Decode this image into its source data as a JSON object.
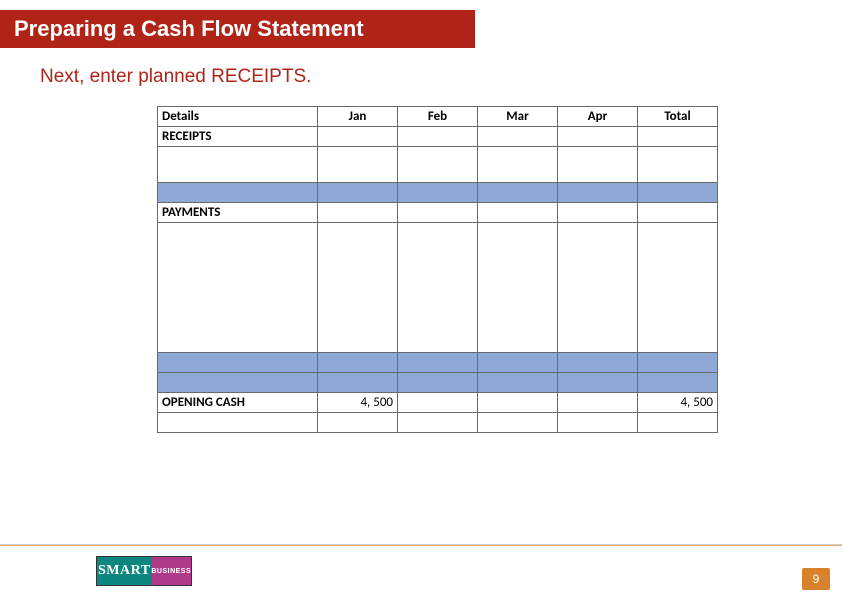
{
  "header": {
    "title": "Preparing a Cash Flow Statement"
  },
  "subtitle": "Next, enter planned RECEIPTS.",
  "table": {
    "columns": [
      "Details",
      "Jan",
      "Feb",
      "Mar",
      "Apr",
      "Total"
    ],
    "section_receipts": "RECEIPTS",
    "section_payments": "PAYMENTS",
    "opening_cash_label": "OPENING CASH",
    "opening_cash_jan": "4, 500",
    "opening_cash_total": "4, 500",
    "band_color": "#8ea9d6",
    "border_color": "#6a6a6a"
  },
  "logo": {
    "word1": "SMART",
    "word2": "BUSINESS"
  },
  "page_number": "9",
  "colors": {
    "title_bg": "#b02418",
    "accent": "#d9822b",
    "logo_teal": "#0b8780",
    "logo_magenta": "#b03a8a"
  }
}
